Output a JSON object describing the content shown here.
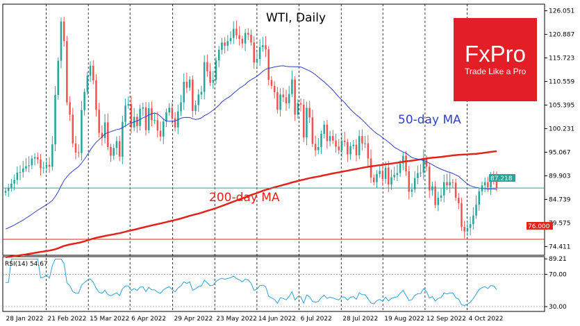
{
  "chart_data": {
    "type": "candlestick",
    "title": "WTI, Daily",
    "price_axis": {
      "ylim": [
        72.5,
        127.5
      ],
      "ticks": [
        "126.051",
        "120.887",
        "115.723",
        "110.559",
        "105.395",
        "100.231",
        "95.067",
        "89.903",
        "84.739",
        "79.575",
        "74.411"
      ],
      "current_price": "87.218",
      "support_level": "76.000"
    },
    "x_axis": {
      "ticks": [
        "28 Jan 2022",
        "21 Feb 2022",
        "15 Mar 2022",
        "6 Apr 2022",
        "29 Apr 2022",
        "23 May 2022",
        "14 Jun 2022",
        "6 Jul 2022",
        "28 Jul 2022",
        "19 Aug 2022",
        "12 Sep 2022",
        "4 Oct 2022"
      ]
    },
    "annotations": {
      "ma50": "50-day MA",
      "ma200": "200-day MA"
    },
    "series_close": [
      86.6,
      87.3,
      88.2,
      89.0,
      90.6,
      90.7,
      91.5,
      92.0,
      92.2,
      93.7,
      94.0,
      93.5,
      91.6,
      91.7,
      92.3,
      91.9,
      96.8,
      107.6,
      115.1,
      123.7,
      119.4,
      106.0,
      103.3,
      97.0,
      95.0,
      94.9,
      104.3,
      108.3,
      111.8,
      114.0,
      110.8,
      104.4,
      99.3,
      98.2,
      101.6,
      96.2,
      94.3,
      96.0,
      97.5,
      94.1,
      101.7,
      105.3,
      105.6,
      100.5,
      102.8,
      100.8,
      104.6,
      104.9,
      99.9,
      104.7,
      102.1,
      102.1,
      99.8,
      98.5,
      101.8,
      103.8,
      104.8,
      102.5,
      100.5,
      104.0,
      106.0,
      110.5,
      109.2,
      111.0,
      104.1,
      105.4,
      107.7,
      108.3,
      114.8,
      112.8,
      110.3,
      110.9,
      115.2,
      117.5,
      119.1,
      118.4,
      119.4,
      120.1,
      122.1,
      120.7,
      119.9,
      118.9,
      121.2,
      120.8,
      119.1,
      114.7,
      115.5,
      118.1,
      118.5,
      117.6,
      110.9,
      109.6,
      108.2,
      104.4,
      107.7,
      107.1,
      105.8,
      107.8,
      111.0,
      103.3,
      105.8,
      105.5,
      98.3,
      104.8,
      102.7,
      96.9,
      95.5,
      96.2,
      99.1,
      101.1,
      97.5,
      98.6,
      97.6,
      96.3,
      95.5,
      97.6,
      97.3,
      94.6,
      96.4,
      96.7,
      94.4,
      98.6,
      97.0,
      97.0,
      93.7,
      89.5,
      88.5,
      90.3,
      91.0,
      89.2,
      91.7,
      88.0,
      89.6,
      90.1,
      90.5,
      92.6,
      94.3,
      90.9,
      86.4,
      86.9,
      89.4,
      90.5,
      90.6,
      93.7,
      91.9,
      86.7,
      87.6,
      83.5,
      85.1,
      85.6,
      88.5,
      87.8,
      88.5,
      88.4,
      85.1,
      83.9,
      78.7,
      77.7,
      78.5,
      79.3,
      81.2,
      83.6,
      86.5,
      87.8,
      88.5,
      87.4,
      89.4,
      89.2,
      87.2
    ]
  },
  "indicator": {
    "label": "RSI(14) 54.67",
    "ticks": [
      "89.21",
      "70.00",
      "30.00"
    ]
  },
  "logo": {
    "brand": "FxPro",
    "tagline": "Trade Like a Pro"
  },
  "colors": {
    "up": "#26a69a",
    "down": "#ef5350",
    "ma50": "#2c3fcf",
    "ma200": "#e2231a",
    "rsi": "#29a3db",
    "current_line": "#26a69a",
    "logo_bg": "#e41e26"
  }
}
